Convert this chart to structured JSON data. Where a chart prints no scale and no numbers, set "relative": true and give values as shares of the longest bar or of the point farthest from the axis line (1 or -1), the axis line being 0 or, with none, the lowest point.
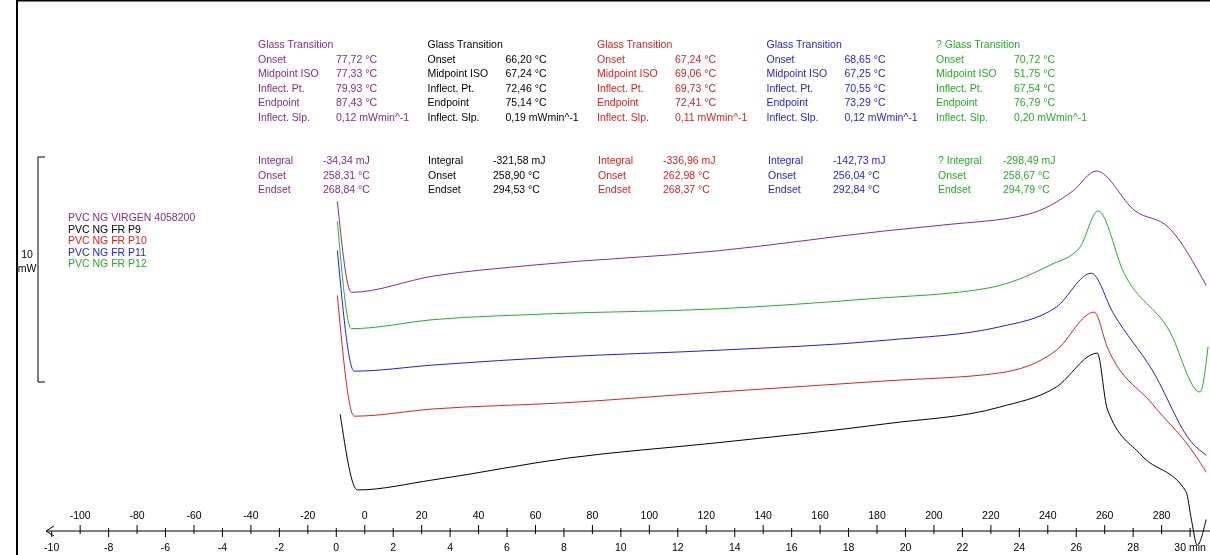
{
  "chart_data": {
    "type": "line",
    "relative": true,
    "ylabel": "10 mW",
    "legend": "top left",
    "grid": false,
    "xlim": [
      -10.2,
      30.7
    ],
    "xticks": [
      -10,
      {
        "value": -9,
        "label": null
      },
      -8,
      {
        "value": -7,
        "label": null
      },
      -6,
      {
        "value": -5,
        "label": null
      },
      -4,
      {
        "value": -3,
        "label": null
      },
      -2,
      {
        "value": -1,
        "label": null
      },
      0,
      {
        "value": 1,
        "label": null
      },
      2,
      {
        "value": 3,
        "label": null
      },
      4,
      {
        "value": 5,
        "label": null
      },
      6,
      {
        "value": 7,
        "label": null
      },
      8,
      {
        "value": 9,
        "label": null
      },
      10,
      {
        "value": 11,
        "label": null
      },
      12,
      {
        "value": 13,
        "label": null
      },
      14,
      {
        "value": 15,
        "label": null
      },
      16,
      {
        "value": 17,
        "label": null
      },
      18,
      {
        "value": 19,
        "label": null
      },
      20,
      {
        "value": 21,
        "label": null
      },
      22,
      {
        "value": 23,
        "label": null
      },
      24,
      {
        "value": 25,
        "label": null
      },
      26,
      {
        "value": 27,
        "label": null
      },
      28,
      {
        "value": 29,
        "label": null
      },
      {
        "value": 30,
        "label": "30 min"
      }
    ],
    "x2lim": [
      -112,
      297
    ],
    "x2ticks": [
      -100,
      {
        "value": -90,
        "label": null
      },
      -80,
      {
        "value": -70,
        "label": null
      },
      -60,
      {
        "value": -50,
        "label": null
      },
      -40,
      {
        "value": -30,
        "label": null
      },
      -20,
      {
        "value": -10,
        "label": null
      },
      0,
      {
        "value": 10,
        "label": null
      },
      20,
      {
        "value": 30,
        "label": null
      },
      40,
      {
        "value": 50,
        "label": null
      },
      60,
      {
        "value": 70,
        "label": null
      },
      80,
      {
        "value": 90,
        "label": null
      },
      100,
      {
        "value": 110,
        "label": null
      },
      120,
      {
        "value": 130,
        "label": null
      },
      140,
      {
        "value": 150,
        "label": null
      },
      160,
      {
        "value": 170,
        "label": null
      },
      180,
      {
        "value": 190,
        "label": null
      },
      200,
      {
        "value": 210,
        "label": null
      },
      220,
      {
        "value": 230,
        "label": null
      },
      240,
      {
        "value": 250,
        "label": null
      },
      260,
      {
        "value": 270,
        "label": null
      },
      280,
      {
        "value": 290,
        "label": null
      }
    ],
    "series": [
      {
        "name": "PVC NG VIRGEN 4058200",
        "color": "#8b2a8b",
        "x": [
          0.04,
          0.53,
          3.4,
          6.98,
          13.37,
          19.33,
          21.33,
          24.32,
          25.89,
          26.7,
          28.07,
          29.26,
          30.56
        ],
        "values": [
          0.914,
          0.663,
          0.708,
          0.739,
          0.778,
          0.834,
          0.85,
          0.88,
          0.945,
          1,
          0.889,
          0.842,
          0.683
        ]
      },
      {
        "name": "PVC NG FR P9",
        "color": "#000000",
        "x": [
          0.14,
          0.74,
          3.4,
          8.18,
          13.37,
          19.33,
          23.3,
          25.3,
          26.74,
          27.09,
          28.28,
          29.86,
          30.05,
          30.25,
          30.56
        ],
        "values": [
          0.323,
          0.114,
          0.142,
          0.203,
          0.245,
          0.298,
          0.344,
          0.4,
          0.494,
          0.339,
          0.211,
          0.109,
          0.03,
          -0.039,
          0.031
        ]
      },
      {
        "name": "PVC NG FR P10",
        "color": "#e0201e",
        "x": [
          0.04,
          0.63,
          3.4,
          8,
          13.37,
          19.33,
          23.3,
          25.3,
          26.63,
          27.09,
          28.67,
          30.18,
          30.56
        ],
        "values": [
          0.653,
          0.319,
          0.339,
          0.356,
          0.386,
          0.417,
          0.439,
          0.502,
          0.608,
          0.511,
          0.353,
          0.211,
          0.164
        ]
      },
      {
        "name": "PVC NG FR P11",
        "color": "#1e1ee0",
        "x": [
          0.04,
          0.63,
          3.4,
          8,
          13.37,
          19.33,
          23.3,
          25.3,
          26.53,
          27.3,
          28.67,
          30.07,
          30.56
        ],
        "values": [
          0.778,
          0.444,
          0.461,
          0.484,
          0.502,
          0.53,
          0.567,
          0.622,
          0.716,
          0.605,
          0.447,
          0.245,
          0.211
        ]
      },
      {
        "name": "PVC NG FR P12",
        "color": "#22b022",
        "x": [
          0.04,
          0.53,
          3.4,
          7.4,
          13.37,
          18.74,
          22.91,
          25.09,
          26.11,
          26.77,
          27.68,
          29.26,
          30.35,
          30.63
        ],
        "values": [
          0.859,
          0.562,
          0.587,
          0.603,
          0.617,
          0.645,
          0.675,
          0.739,
          0.786,
          0.889,
          0.716,
          0.558,
          0.386,
          0.511
        ]
      }
    ],
    "annotations": [
      "Glass Transition\nOnset\t77,72 °C\nMidpoint ISO\t77,33 °C\nInflect. Pt.\t79,93 °C\nEndpoint\t87,43 °C\nInflect. Slp.\t0,12 mWmin^-1",
      "Glass Transition\nOnset\t66,20 °C\nMidpoint ISO\t67,24 °C\nInflect. Pt.\t72,46 °C\nEndpoint\t75,14 °C\nInflect. Slp.\t0,19 mWmin^-1",
      "Glass Transition\nOnset\t67,24 °C\nMidpoint ISO\t69,06 °C\nInflect. Pt.\t69,73 °C\nEndpoint\t72,41 °C\nInflect. Slp.\t0,11 mWmin^-1",
      "Glass Transition\nOnset\t68,65 °C\nMidpoint ISO\t67,25 °C\nInflect. Pt.\t70,55 °C\nEndpoint\t73,29 °C\nInflect. Slp.\t0,12 mWmin^-1",
      "? Glass Transition\nOnset\t70,72 °C\nMidpoint ISO\t51,75 °C\nInflect. Pt.\t67,54 °C\nEndpoint\t76,79 °C\nInflect. Slp.\t0,20 mWmin^-1",
      "Integral\t-34,34  mJ\nOnset\t258,31 °C\nEndset\t268,84 °C",
      "Integral\t-321,58 mJ\nOnset\t258,90 °C\nEndset\t294,53 °C",
      "Integral\t-336,96 mJ\nOnset\t262,98 °C\nEndset\t268,37 °C",
      "Integral\t-142,73 mJ\nOnset\t256,04 °C\nEndset\t292,84 °C",
      "? Integral\t-298,49 mJ\nOnset\t258,67 °C\nEndset\t294,79 °C"
    ]
  }
}
